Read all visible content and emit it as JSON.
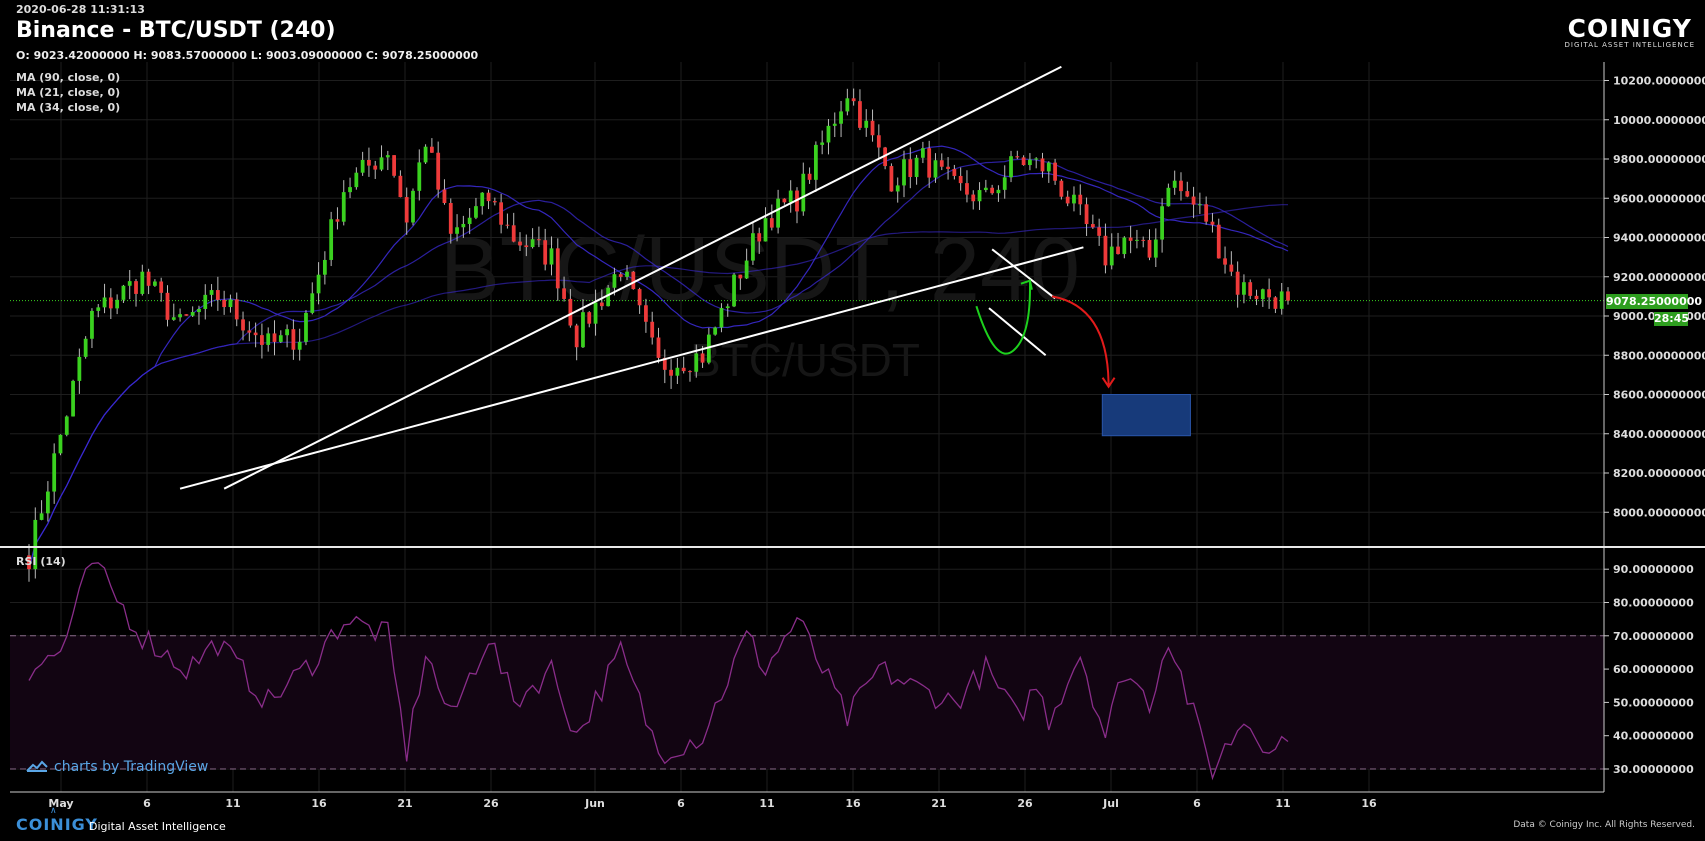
{
  "header": {
    "timestamp": "2020-06-28 11:31:13",
    "title": "Binance - BTC/USDT (240)",
    "ohlc": "O: 9023.42000000 H: 9083.57000000 L: 9003.09000000 C: 9078.25000000",
    "indicators": [
      "MA (90, close, 0)",
      "MA (21, close, 0)",
      "MA (34, close, 0)"
    ]
  },
  "watermark": {
    "main": "BTC/USDT, 240",
    "sub": "BTC/USDT"
  },
  "logo": {
    "name": "COINIGY",
    "subtitle": "DIGITAL ASSET INTELLIGENCE"
  },
  "tradingview_label": "charts by TradingView",
  "footer": {
    "brand": "COINIGY",
    "tagline": "Digital Asset Intelligence",
    "credit": "Data © Coinigy Inc.  All Rights Reserved."
  },
  "price_tag": {
    "value": "9078.25000000",
    "timer": "28:45"
  },
  "colors": {
    "up": "#3ad11f",
    "down": "#ee3a3a",
    "ma": "#3a2ad0",
    "rsi": "#8a2d8a",
    "zone": "#173a7a",
    "grid": "#1e1e1e",
    "accent": "#2e9e1f"
  },
  "chart_data": [
    {
      "type": "candlestick",
      "title": "Binance - BTC/USDT (240)",
      "x_ticks": [
        "May",
        "6",
        "11",
        "16",
        "21",
        "26",
        "Jun",
        "6",
        "11",
        "16",
        "21",
        "26",
        "Jul",
        "6",
        "11",
        "16"
      ],
      "y_ticks": [
        "8000.00000000",
        "8200.00000000",
        "8400.00000000",
        "8600.00000000",
        "8800.00000000",
        "9000.00000000",
        "9200.00000000",
        "9400.00000000",
        "9600.00000000",
        "9800.00000000",
        "10000.00000000",
        "10200.00000000"
      ],
      "ylim": [
        7820,
        10300
      ],
      "last_price": 9078.25,
      "path_x": [
        0,
        10,
        18,
        24,
        30,
        38,
        43,
        50,
        57,
        60,
        63,
        67,
        73,
        77,
        83,
        87,
        94,
        100,
        107,
        114,
        117,
        122,
        130,
        137,
        142,
        147,
        152,
        157,
        162,
        167,
        171,
        174,
        178,
        181,
        187,
        192,
        200
      ],
      "path_y": [
        7780,
        9000,
        9200,
        8950,
        9100,
        8850,
        8900,
        9650,
        9850,
        9500,
        9900,
        9400,
        9600,
        9400,
        9300,
        8900,
        9250,
        8750,
        8800,
        9300,
        9500,
        9600,
        10150,
        9700,
        9800,
        9650,
        9600,
        9800,
        9750,
        9500,
        9300,
        9400,
        9300,
        9700,
        9500,
        9150,
        9078
      ],
      "drawn_lines": [
        {
          "from": [
            31,
            8120
          ],
          "to": [
            164,
            10270
          ]
        },
        {
          "from": [
            24,
            8120
          ],
          "to": [
            167.5,
            9350
          ]
        },
        {
          "from": [
            153,
            9340
          ],
          "to": [
            163,
            9090
          ]
        },
        {
          "from": [
            152.5,
            9040
          ],
          "to": [
            161.5,
            8800
          ]
        }
      ],
      "green_arrow": [
        [
          150.5,
          9050
        ],
        [
          153.5,
          8900
        ],
        [
          159,
          9180
        ]
      ],
      "red_arrow": [
        [
          162.5,
          9100
        ],
        [
          171.5,
          8640
        ]
      ],
      "target_zone": {
        "x": [
          170.5,
          184.5
        ],
        "y": [
          8390,
          8600
        ]
      }
    },
    {
      "type": "line",
      "title": "RSI (14)",
      "y_ticks": [
        "30.00000000",
        "40.00000000",
        "50.00000000",
        "60.00000000",
        "70.00000000",
        "80.00000000",
        "90.00000000"
      ],
      "ylim": [
        24,
        97
      ],
      "bands": [
        30,
        70
      ],
      "x": [
        0,
        5,
        10,
        18,
        25,
        30,
        38,
        45,
        50,
        57,
        60,
        63,
        67,
        73,
        77,
        83,
        87,
        94,
        100,
        107,
        114,
        117,
        122,
        130,
        135,
        140,
        147,
        152,
        157,
        160,
        162,
        167,
        171,
        174,
        178,
        181,
        186,
        188,
        193,
        198,
        200
      ],
      "values": [
        60,
        65,
        92,
        70,
        60,
        68,
        50,
        62,
        75,
        70,
        35,
        65,
        45,
        70,
        50,
        60,
        40,
        65,
        35,
        40,
        70,
        60,
        75,
        45,
        60,
        55,
        50,
        60,
        45,
        55,
        45,
        65,
        40,
        60,
        50,
        70,
        40,
        30,
        45,
        35,
        42
      ]
    }
  ]
}
